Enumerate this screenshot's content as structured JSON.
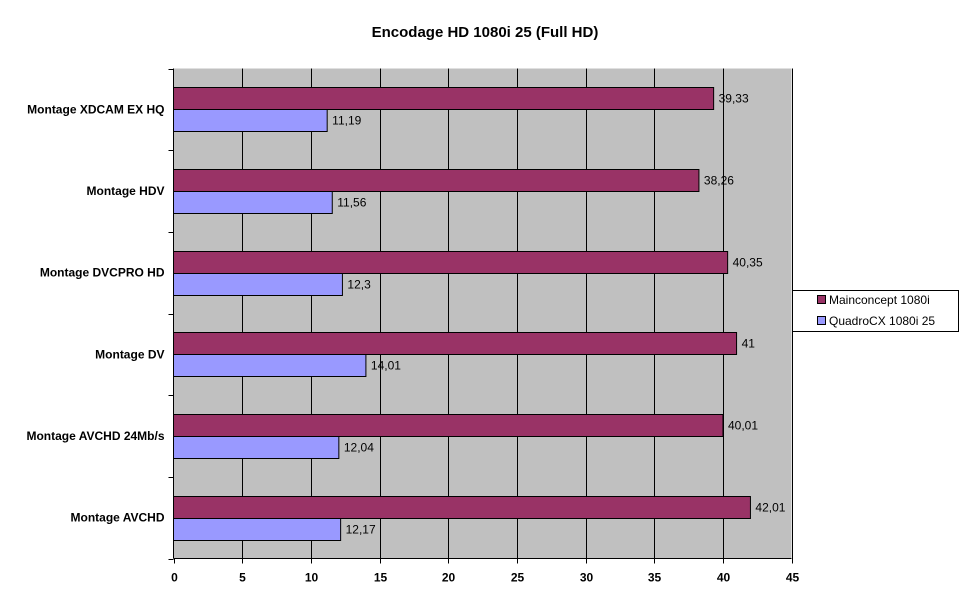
{
  "chart_data": {
    "type": "bar",
    "orientation": "horizontal",
    "title": "Encodage HD 1080i 25 (Full HD)",
    "xlabel": "",
    "ylabel": "",
    "categories": [
      "Montage XDCAM EX HQ",
      "Montage HDV",
      "Montage DVCPRO HD",
      "Montage DV",
      "Montage AVCHD 24Mb/s",
      "Montage AVCHD"
    ],
    "series": [
      {
        "name": "Mainconcept 1080i",
        "color": "#993366",
        "values": [
          39.33,
          38.26,
          40.35,
          41,
          40.01,
          42.01
        ],
        "labels": [
          "39,33",
          "38,26",
          "40,35",
          "41",
          "40,01",
          "42,01"
        ]
      },
      {
        "name": "QuadroCX 1080i 25",
        "color": "#9999FF",
        "values": [
          11.19,
          11.56,
          12.3,
          14.01,
          12.04,
          12.17
        ],
        "labels": [
          "11,19",
          "11,56",
          "12,3",
          "14,01",
          "12,04",
          "12,17"
        ]
      }
    ],
    "xlim": [
      0,
      45
    ],
    "xticks": [
      0,
      5,
      10,
      15,
      20,
      25,
      30,
      35,
      40,
      45
    ],
    "grid": "vertical",
    "plot_background": "#C0C0C0",
    "legend": "right"
  }
}
